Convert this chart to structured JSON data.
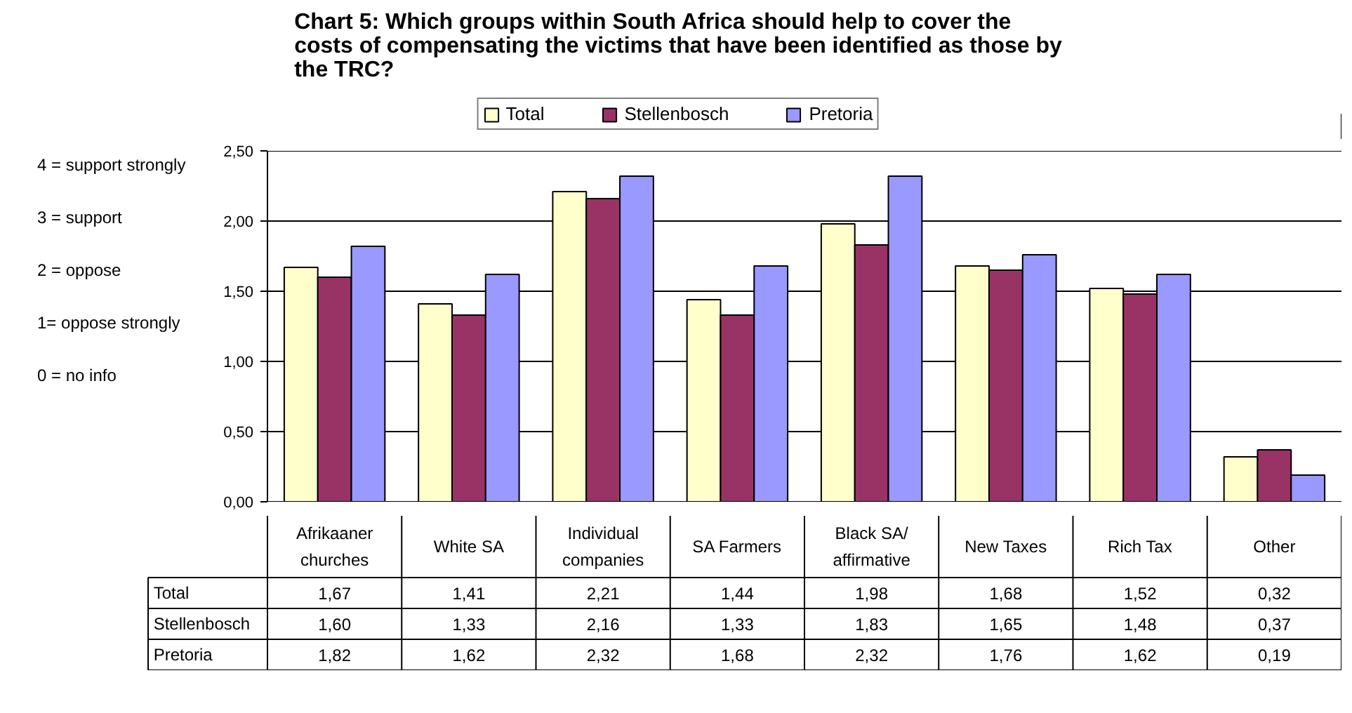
{
  "chart_data": {
    "type": "bar",
    "title": "Chart 5:  Which groups within South Africa should help to cover the costs of compensating the victims that have been identified as those by the TRC?",
    "categories": [
      "Afrikaaner churches",
      "White SA",
      "Individual companies",
      "SA Farmers",
      "Black SA/ affirmative",
      "New Taxes",
      "Rich Tax",
      "Other"
    ],
    "series": [
      {
        "name": "Total",
        "color": "#ffffcc",
        "values": [
          1.67,
          1.41,
          2.21,
          1.44,
          1.98,
          1.68,
          1.52,
          0.32
        ],
        "value_labels": [
          "1,67",
          "1,41",
          "2,21",
          "1,44",
          "1,98",
          "1,68",
          "1,52",
          "0,32"
        ]
      },
      {
        "name": "Stellenbosch",
        "color": "#993366",
        "values": [
          1.6,
          1.33,
          2.16,
          1.33,
          1.83,
          1.65,
          1.48,
          0.37
        ],
        "value_labels": [
          "1,60",
          "1,33",
          "2,16",
          "1,33",
          "1,83",
          "1,65",
          "1,48",
          "0,37"
        ]
      },
      {
        "name": "Pretoria",
        "color": "#9999ff",
        "values": [
          1.82,
          1.62,
          2.32,
          1.68,
          2.32,
          1.76,
          1.62,
          0.19
        ],
        "value_labels": [
          "1,82",
          "1,62",
          "2,32",
          "1,68",
          "2,32",
          "1,76",
          "1,62",
          "0,19"
        ]
      }
    ],
    "ylim": [
      0,
      2.5
    ],
    "yticks": [
      {
        "value": 0,
        "label": "0,00"
      },
      {
        "value": 0.5,
        "label": "0,50"
      },
      {
        "value": 1,
        "label": "1,00"
      },
      {
        "value": 1.5,
        "label": "1,50"
      },
      {
        "value": 2,
        "label": "2,00"
      },
      {
        "value": 2.5,
        "label": "2,50"
      }
    ],
    "grid": "y",
    "legend": "top",
    "annotations": [
      "4 = support strongly",
      "3 = support",
      "2 = oppose",
      "1= oppose strongly",
      "0 = no info"
    ]
  }
}
